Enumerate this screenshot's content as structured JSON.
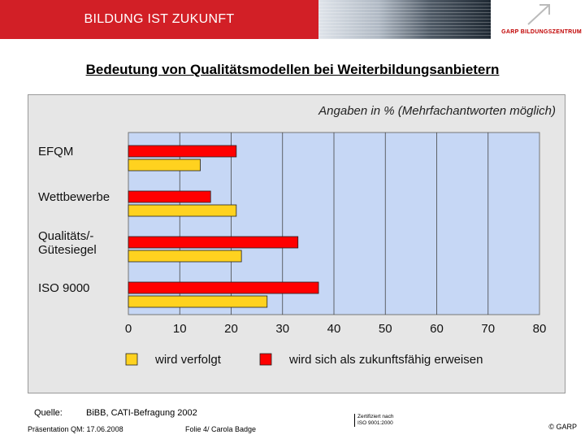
{
  "header": {
    "title": "BILDUNG IST ZUKUNFT",
    "logo_garp": "GARP",
    "logo_bz": "BILDUNGSZENTRUM",
    "colors": {
      "header_red": "#d21f26"
    }
  },
  "page_title": "Bedeutung von Qualitätsmodellen bei Weiterbildungsanbietern",
  "chart_data": {
    "type": "bar",
    "orientation": "horizontal",
    "subtitle": "Angaben in % (Mehrfachantworten möglich)",
    "categories": [
      "EFQM",
      "Wettbewerbe",
      "Qualitäts/-\nGütesiegel",
      "ISO 9000"
    ],
    "series": [
      {
        "name": "wird sich als zukunftsfähig erweisen",
        "color": "#ff0000",
        "values": [
          21,
          16,
          33,
          37
        ]
      },
      {
        "name": "wird verfolgt",
        "color": "#ffd21f",
        "values": [
          14,
          21,
          22,
          27
        ]
      }
    ],
    "xlim": [
      0,
      80
    ],
    "xticks": [
      "0",
      "10",
      "20",
      "30",
      "40",
      "50",
      "60",
      "70",
      "80"
    ],
    "grid": true,
    "legend_position": "bottom",
    "plot_background": "#c6d7f5"
  },
  "footer": {
    "quelle_label": "Quelle:",
    "source": "BiBB, CATI-Befragung 2002",
    "presentation": "Präsentation QM: 17.06.2008",
    "slide": "Folie 4/ Carola Badge",
    "certified_line1": "Zertifiziert nach",
    "certified_line2": "ISO 9001:2000",
    "copyright": "© GARP"
  }
}
